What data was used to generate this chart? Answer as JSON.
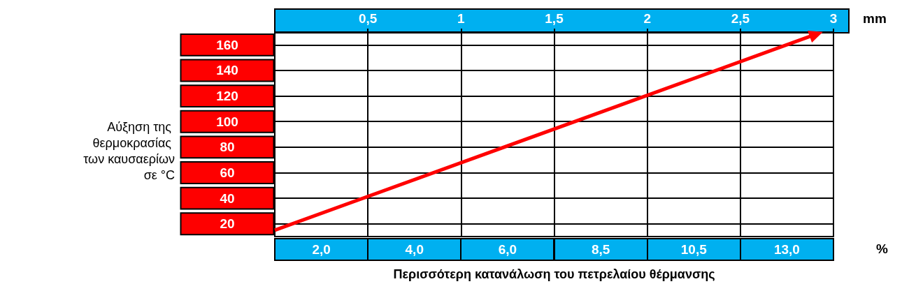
{
  "chart_data": {
    "type": "line",
    "xlabel": "Περισσότερη κατανάλωση του πετρελαίου θέρμανσης",
    "ylabel": "Αύξηση της θερμοκρασίας των καυσαερίων σε °C",
    "x2label": "mm",
    "annotations": [
      "%"
    ],
    "categories": [
      "2,0",
      "4,0",
      "6,0",
      "8,5",
      "10,5",
      "13,0"
    ],
    "series": [
      {
        "color": "#ff0000",
        "axis": "x2",
        "x": [
          0,
          2.9
        ],
        "values": [
          15,
          168
        ]
      }
    ],
    "x2lim": [
      0,
      3
    ],
    "x2ticks": [
      {
        "value": 0.5,
        "label": "0,5"
      },
      1,
      {
        "value": 1.5,
        "label": "1,5"
      },
      2,
      {
        "value": 2.5,
        "label": "2,5"
      },
      3
    ],
    "ylim": [
      10,
      170
    ],
    "yticks": [
      20,
      40,
      60,
      80,
      100,
      120,
      140,
      160
    ],
    "grid": true,
    "line_style": "solid"
  }
}
